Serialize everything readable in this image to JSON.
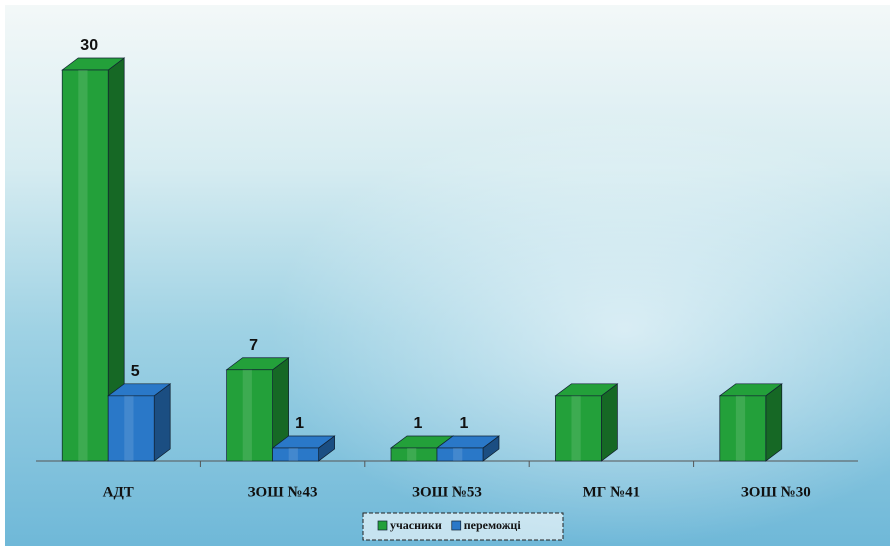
{
  "chart_data": {
    "type": "bar3d",
    "categories": [
      "АДТ",
      "ЗОШ №43",
      "ЗОШ №53",
      "МГ №41",
      "ЗОШ №30"
    ],
    "series": [
      {
        "name": "учасники",
        "color": "#23a03a",
        "values": [
          30,
          7,
          1,
          5,
          5
        ],
        "value_labels": [
          "30",
          "7",
          "1",
          null,
          null
        ]
      },
      {
        "name": "переможці",
        "color": "#2a78c8",
        "values": [
          5,
          1,
          1,
          null,
          null
        ],
        "value_labels": [
          "5",
          "1",
          "1",
          null,
          null
        ]
      }
    ],
    "legend": "bottom"
  }
}
